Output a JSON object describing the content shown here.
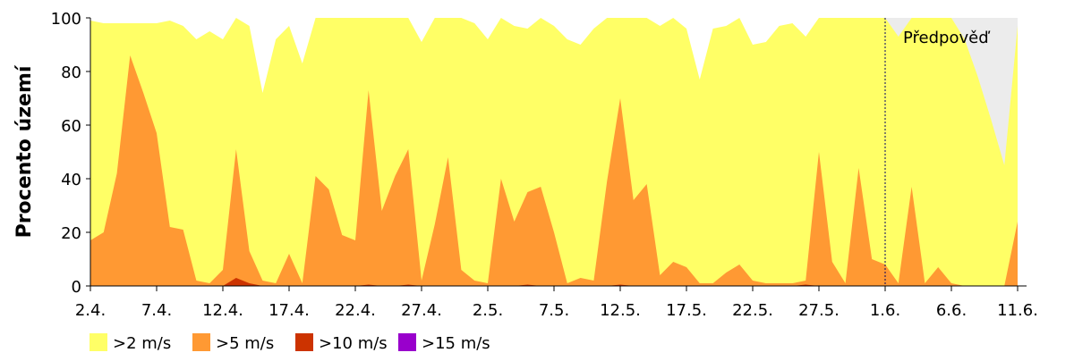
{
  "chart_data": {
    "type": "area",
    "y_label": "Procento území",
    "categories": [
      "2.4.",
      null,
      null,
      null,
      null,
      "7.4.",
      null,
      null,
      null,
      null,
      "12.4.",
      null,
      null,
      null,
      null,
      "17.4.",
      null,
      null,
      null,
      null,
      "22.4.",
      null,
      null,
      null,
      null,
      "27.4.",
      null,
      null,
      null,
      null,
      "2.5.",
      null,
      null,
      null,
      null,
      "7.5.",
      null,
      null,
      null,
      null,
      "12.5.",
      null,
      null,
      null,
      null,
      "17.5.",
      null,
      null,
      null,
      null,
      "22.5.",
      null,
      null,
      null,
      null,
      "27.5.",
      null,
      null,
      null,
      null,
      "1.6.",
      null,
      null,
      null,
      null,
      "6.6.",
      null,
      null,
      null,
      null,
      "11.6."
    ],
    "ylim": [
      0,
      100
    ],
    "yticks": [
      0,
      20,
      40,
      60,
      80,
      100
    ],
    "forecast_start": "1.6.",
    "forecast_label": "Předpověď",
    "forecast_color": "#ececec",
    "series": [
      {
        "name": ">2 m/s",
        "color": "#ffff66",
        "values": [
          99,
          98,
          98,
          98,
          98,
          98,
          99,
          97,
          92,
          95,
          92,
          100,
          97,
          72,
          92,
          97,
          83,
          100,
          100,
          100,
          100,
          100,
          100,
          100,
          100,
          91,
          100,
          100,
          100,
          98,
          92,
          100,
          97,
          96,
          100,
          97,
          92,
          90,
          96,
          100,
          100,
          100,
          100,
          97,
          100,
          96,
          77,
          96,
          97,
          100,
          90,
          91,
          97,
          98,
          93,
          100,
          100,
          100,
          100,
          100,
          100,
          93,
          100,
          100,
          100,
          100,
          92,
          78,
          62,
          45,
          97
        ]
      },
      {
        "name": ">5 m/s",
        "color": "#ff9933",
        "values": [
          17,
          20,
          42,
          86,
          72,
          57,
          22,
          21,
          2,
          1,
          6,
          51,
          13,
          2,
          1,
          12,
          1,
          41,
          36,
          19,
          17,
          73,
          28,
          41,
          51,
          2,
          23,
          48,
          6,
          2,
          1,
          40,
          24,
          35,
          37,
          20,
          1,
          3,
          2,
          39,
          70,
          32,
          38,
          4,
          9,
          7,
          1,
          1,
          5,
          8,
          2,
          1,
          1,
          1,
          2,
          50,
          9,
          1,
          44,
          10,
          8,
          1,
          37,
          1,
          7,
          1,
          0,
          0,
          0,
          0,
          24
        ]
      },
      {
        "name": ">10 m/s",
        "color": "#cc3300",
        "values": [
          0,
          0,
          0,
          0,
          0,
          0,
          0,
          0,
          0,
          0,
          0,
          3,
          1,
          0,
          0,
          0,
          0,
          0,
          0,
          0,
          0,
          0.5,
          0,
          0,
          0.5,
          0,
          0,
          0,
          0,
          0,
          0,
          0,
          0,
          0.5,
          0,
          0,
          0,
          0,
          0,
          0,
          0.5,
          0,
          0,
          0,
          0,
          0,
          0,
          0,
          0,
          0,
          0,
          0,
          0,
          0,
          0.5,
          0,
          0,
          0,
          0,
          0,
          0,
          0,
          0,
          0,
          0,
          0,
          0,
          0,
          0,
          0,
          0
        ]
      },
      {
        "name": ">15 m/s",
        "color": "#9900cc",
        "values": [
          0,
          0,
          0,
          0,
          0,
          0,
          0,
          0,
          0,
          0,
          0,
          0,
          0,
          0,
          0,
          0,
          0,
          0,
          0,
          0,
          0,
          0,
          0,
          0,
          0,
          0,
          0,
          0,
          0,
          0,
          0,
          0,
          0,
          0,
          0,
          0,
          0,
          0,
          0,
          0,
          0,
          0,
          0,
          0,
          0,
          0,
          0,
          0,
          0,
          0,
          0,
          0,
          0,
          0,
          0,
          0,
          0,
          0,
          0,
          0,
          0,
          0,
          0,
          0,
          0,
          0,
          0,
          0,
          0,
          0,
          0
        ]
      }
    ]
  }
}
